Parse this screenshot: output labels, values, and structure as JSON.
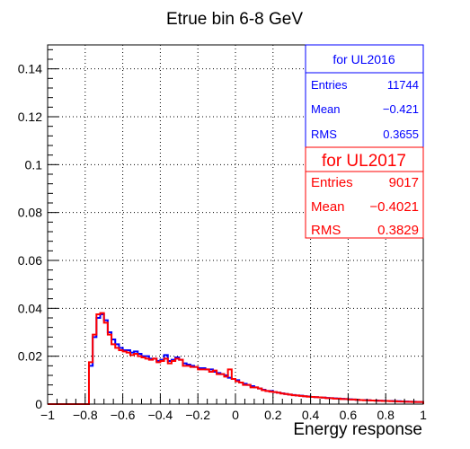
{
  "chart_data": {
    "type": "histogram",
    "title": "Etrue bin 6-8 GeV",
    "xlabel": "Energy response",
    "ylabel": "",
    "xlim": [
      -1,
      1
    ],
    "ylim": [
      0,
      0.15
    ],
    "x_ticks": [
      -1,
      -0.8,
      -0.6,
      -0.4,
      -0.2,
      0,
      0.2,
      0.4,
      0.6,
      0.8,
      1
    ],
    "x_tick_labels": [
      "−1",
      "−0.8",
      "−0.6",
      "−0.4",
      "−0.2",
      "0",
      "0.2",
      "0.4",
      "0.6",
      "0.8",
      "1"
    ],
    "y_ticks": [
      0,
      0.02,
      0.04,
      0.06,
      0.08,
      0.1,
      0.12,
      0.14
    ],
    "y_tick_labels": [
      "0",
      "0.02",
      "0.04",
      "0.06",
      "0.08",
      "0.1",
      "0.12",
      "0.14"
    ],
    "grid": true,
    "bin_edges_range": [
      -1,
      1
    ],
    "nbins": 100,
    "series": [
      {
        "name": "UL2016",
        "color": "#0000ff",
        "values": [
          0,
          0,
          0,
          0,
          0,
          0,
          0,
          0,
          0,
          0,
          0,
          0.016,
          0.028,
          0.036,
          0.0375,
          0.035,
          0.03,
          0.027,
          0.025,
          0.0235,
          0.0225,
          0.0225,
          0.0215,
          0.022,
          0.021,
          0.02,
          0.02,
          0.019,
          0.019,
          0.018,
          0.0185,
          0.0205,
          0.018,
          0.0185,
          0.0195,
          0.0185,
          0.017,
          0.0165,
          0.016,
          0.0155,
          0.015,
          0.015,
          0.0145,
          0.0145,
          0.0135,
          0.013,
          0.0125,
          0.012,
          0.011,
          0.0105,
          0.01,
          0.009,
          0.0085,
          0.008,
          0.0075,
          0.007,
          0.0065,
          0.006,
          0.0055,
          0.0055,
          0.005,
          0.0048,
          0.0045,
          0.0042,
          0.004,
          0.0038,
          0.0036,
          0.0035,
          0.0033,
          0.0032,
          0.003,
          0.0029,
          0.0028,
          0.0027,
          0.0026,
          0.0025,
          0.0024,
          0.0023,
          0.0022,
          0.0021,
          0.002,
          0.0019,
          0.0018,
          0.0017,
          0.0017,
          0.0016,
          0.0015,
          0.0015,
          0.0014,
          0.0014,
          0.0013,
          0.0013,
          0.0012,
          0.0012,
          0.0011,
          0.0011,
          0.001,
          0.001,
          0.0009,
          0.0009
        ]
      },
      {
        "name": "UL2017",
        "color": "#ff0000",
        "values": [
          0,
          0,
          0,
          0,
          0,
          0,
          0,
          0,
          0,
          0,
          0,
          0.0175,
          0.029,
          0.0375,
          0.038,
          0.034,
          0.029,
          0.025,
          0.0235,
          0.0225,
          0.022,
          0.0215,
          0.0205,
          0.021,
          0.02,
          0.0195,
          0.019,
          0.0185,
          0.019,
          0.0175,
          0.018,
          0.019,
          0.017,
          0.018,
          0.019,
          0.0185,
          0.016,
          0.016,
          0.0155,
          0.0155,
          0.0145,
          0.0145,
          0.0145,
          0.0135,
          0.014,
          0.0125,
          0.0125,
          0.0115,
          0.0145,
          0.0105,
          0.0095,
          0.009,
          0.008,
          0.008,
          0.007,
          0.007,
          0.0065,
          0.0058,
          0.0055,
          0.0052,
          0.005,
          0.0048,
          0.0044,
          0.0042,
          0.004,
          0.0037,
          0.0036,
          0.0034,
          0.0033,
          0.0031,
          0.003,
          0.0029,
          0.0028,
          0.0027,
          0.0025,
          0.0025,
          0.0023,
          0.0023,
          0.0021,
          0.0021,
          0.0019,
          0.0019,
          0.0018,
          0.0017,
          0.0016,
          0.0016,
          0.0015,
          0.0014,
          0.0014,
          0.0013,
          0.0013,
          0.0012,
          0.0012,
          0.0011,
          0.0011,
          0.001,
          0.001,
          0.0009,
          0.0009,
          0.0009
        ]
      }
    ]
  },
  "stats_boxes": [
    {
      "title": "for UL2016",
      "color": "#0000ff",
      "rows": [
        {
          "label": "Entries",
          "value": "11744"
        },
        {
          "label": "Mean",
          "value": "−0.421"
        },
        {
          "label": "RMS",
          "value": "0.3655"
        }
      ]
    },
    {
      "title": "for UL2017",
      "color": "#ff0000",
      "rows": [
        {
          "label": "Entries",
          "value": "9017"
        },
        {
          "label": "Mean",
          "value": "−0.4021"
        },
        {
          "label": "RMS",
          "value": "0.3829"
        }
      ]
    }
  ]
}
